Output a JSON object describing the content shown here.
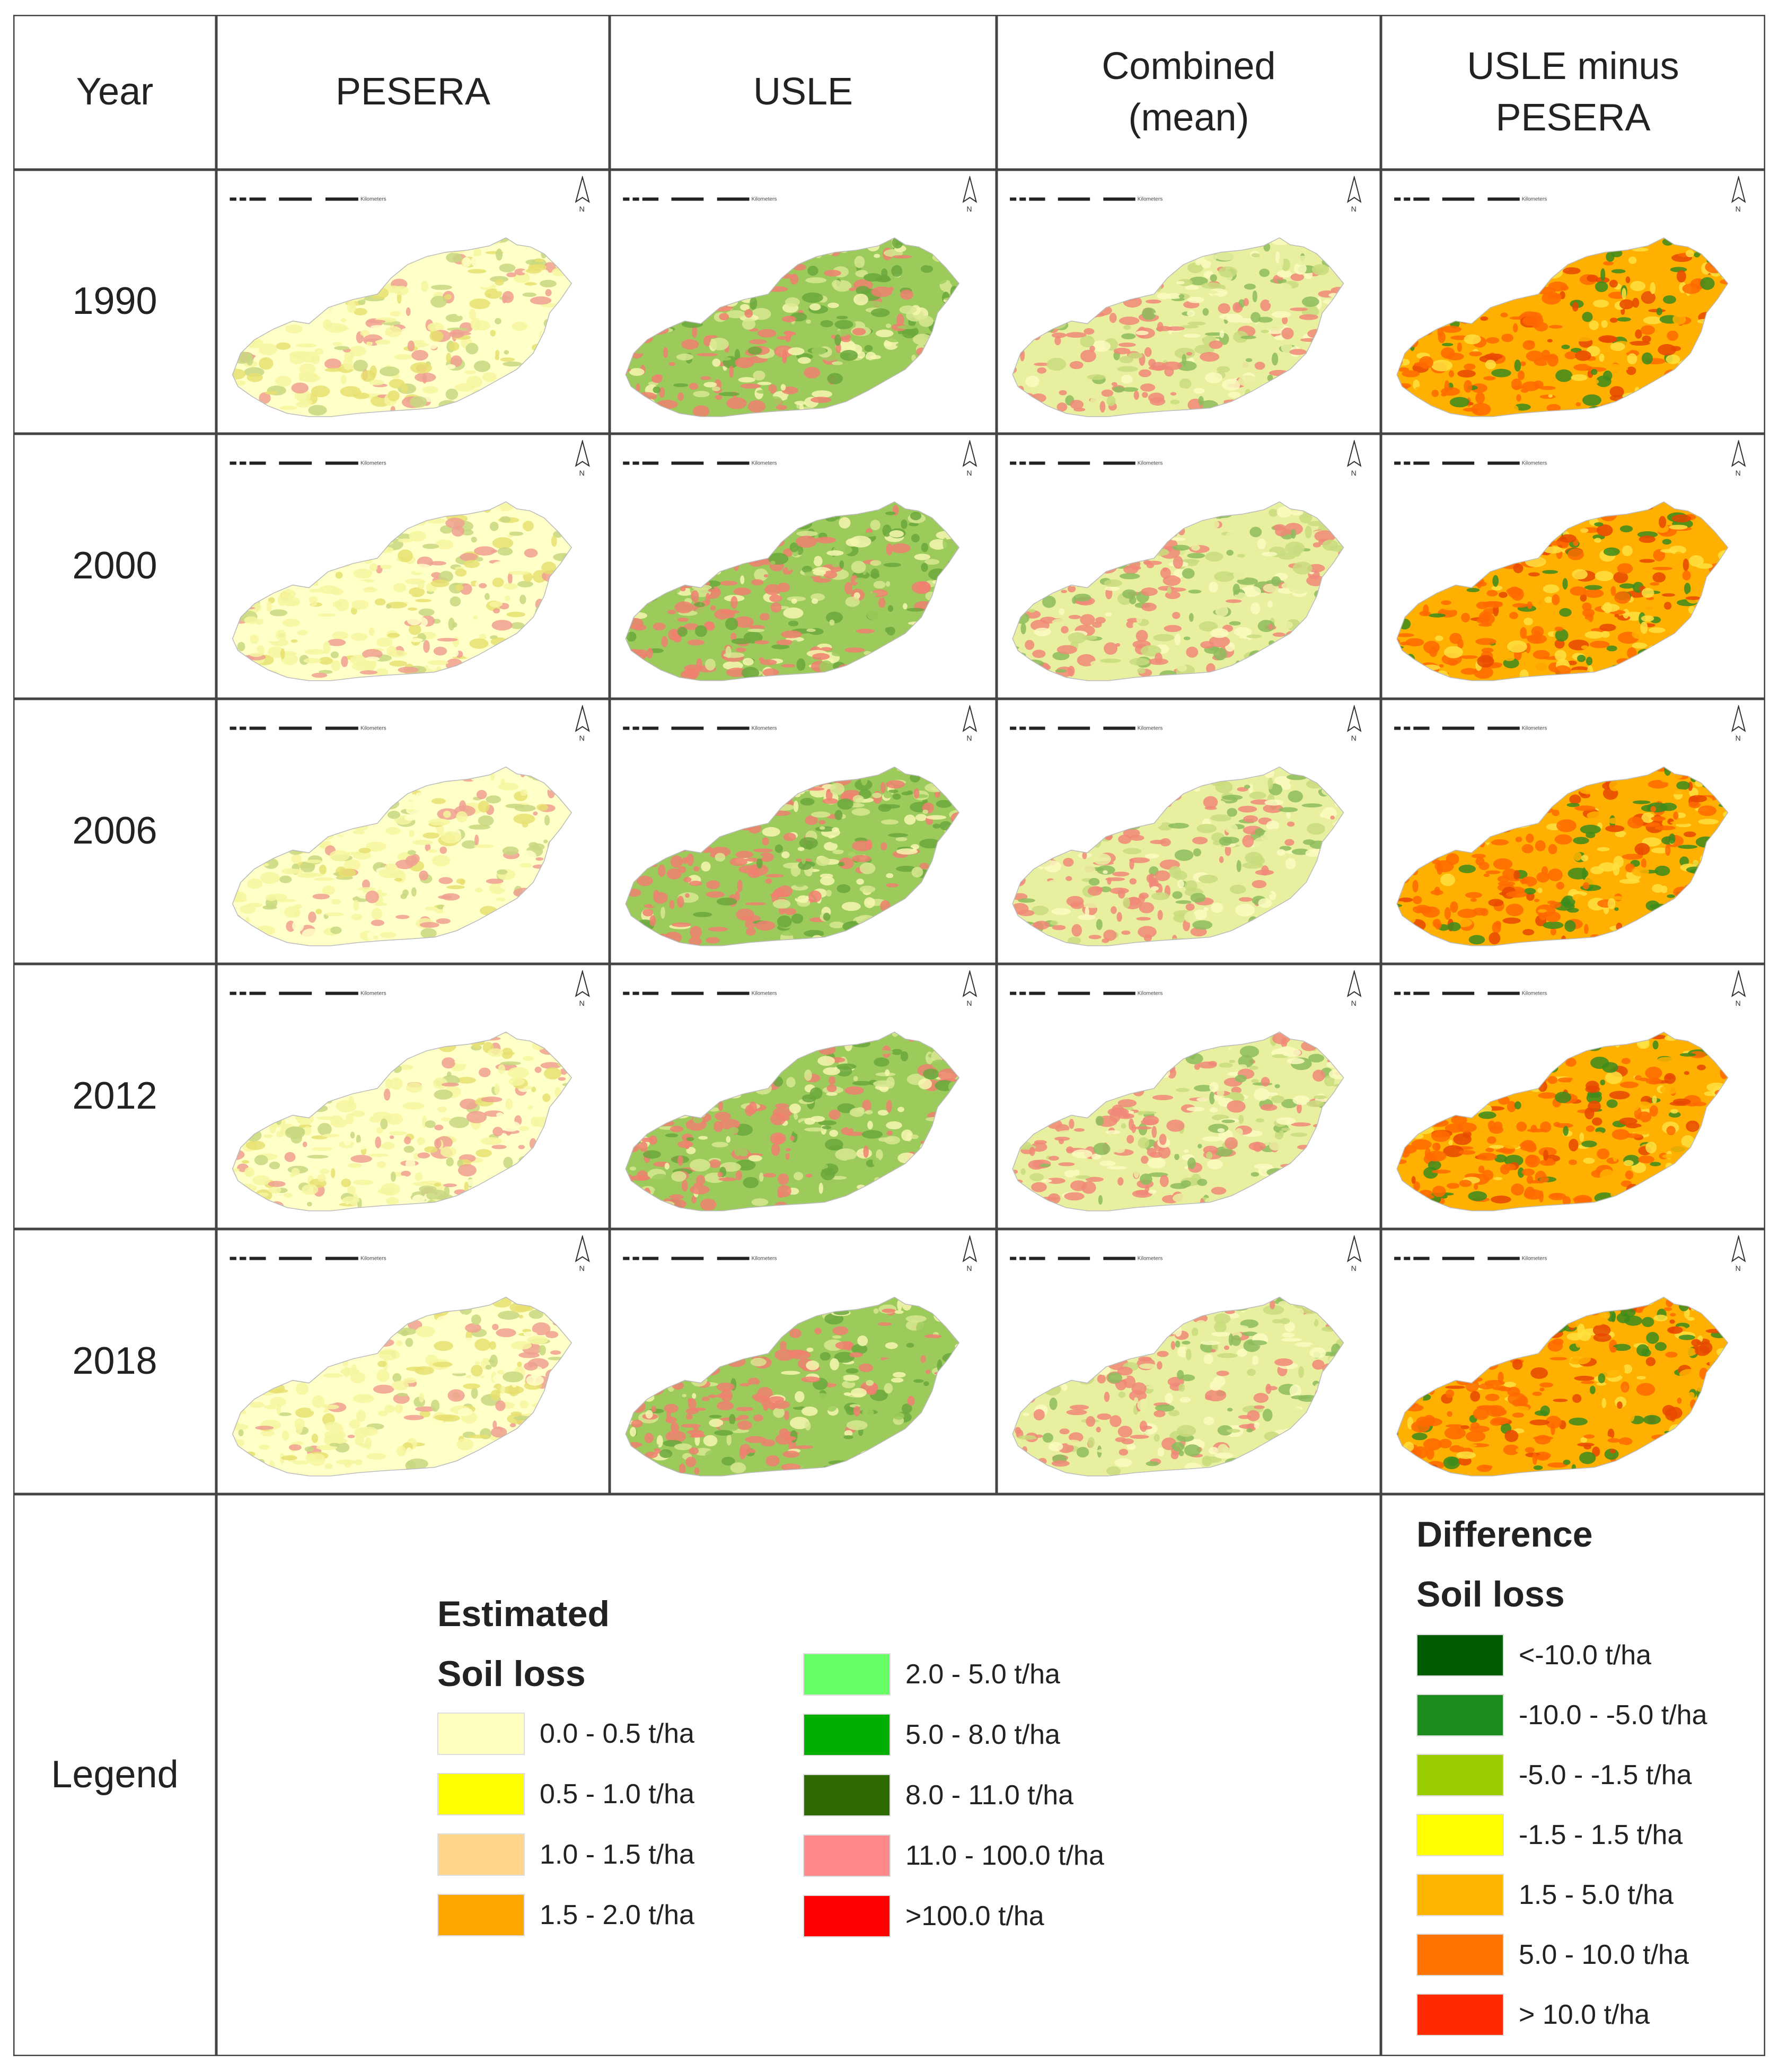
{
  "headers": {
    "year": "Year",
    "pesera": "PESERA",
    "usle": "USLE",
    "combined_line1": "Combined",
    "combined_line2": "(mean)",
    "diff_line1": "USLE minus",
    "diff_line2": "PESERA"
  },
  "years": [
    "1990",
    "2000",
    "2006",
    "2012",
    "2018"
  ],
  "legend_row_label": "Legend",
  "estimated_legend": {
    "title_line1": "Estimated",
    "title_line2": "Soil loss",
    "items": [
      {
        "label": "0.0 - 0.5 t/ha",
        "color": "#FFFFC0"
      },
      {
        "label": "0.5 - 1.0  t/ha",
        "color": "#FFFF00"
      },
      {
        "label": "1.0 - 1.5 t/ha",
        "color": "#FFD68A"
      },
      {
        "label": "1.5 - 2.0 t/ha",
        "color": "#FFA500"
      },
      {
        "label": "2.0 - 5.0 t/ha",
        "color": "#66FF66"
      },
      {
        "label": "5.0 - 8.0 t/ha",
        "color": "#00B000"
      },
      {
        "label": "8.0 - 11.0 t/ha",
        "color": "#2E6B00"
      },
      {
        "label": "11.0 - 100.0 t/ha",
        "color": "#FF8888"
      },
      {
        "label": ">100.0 t/ha",
        "color": "#FF0000"
      }
    ]
  },
  "difference_legend": {
    "title_line1": "Difference",
    "title_line2": "Soil loss",
    "items": [
      {
        "label": "<-10.0 t/ha",
        "color": "#005C00"
      },
      {
        "label": "-10.0 - -5.0 t/ha",
        "color": "#1E8C1E"
      },
      {
        "label": "-5.0 - -1.5 t/ha",
        "color": "#9ACD00"
      },
      {
        "label": "-1.5 - 1.5 t/ha",
        "color": "#FFFF00"
      },
      {
        "label": "1.5 - 5.0 t/ha",
        "color": "#FFB400"
      },
      {
        "label": "5.0 - 10.0 t/ha",
        "color": "#FF7300"
      },
      {
        "label": "> 10.0 t/ha",
        "color": "#FF2A00"
      }
    ]
  },
  "map_palettes": {
    "pesera": [
      "#FFFFC8",
      "#F6F6A0",
      "#F0A090",
      "#E8E070",
      "#C8D880"
    ],
    "usle": [
      "#9CCB5C",
      "#F08070",
      "#D8E890",
      "#F7F7B0",
      "#6BA83C"
    ],
    "combined": [
      "#E8F0A0",
      "#F08878",
      "#C8DC7C",
      "#FAFAC0",
      "#8CBC5C"
    ],
    "diff": [
      "#FFB000",
      "#FF6A00",
      "#FFE040",
      "#3C8C1C",
      "#E84800"
    ]
  },
  "north_arrow_label": "N",
  "scale_bar_label": "Kilometers"
}
